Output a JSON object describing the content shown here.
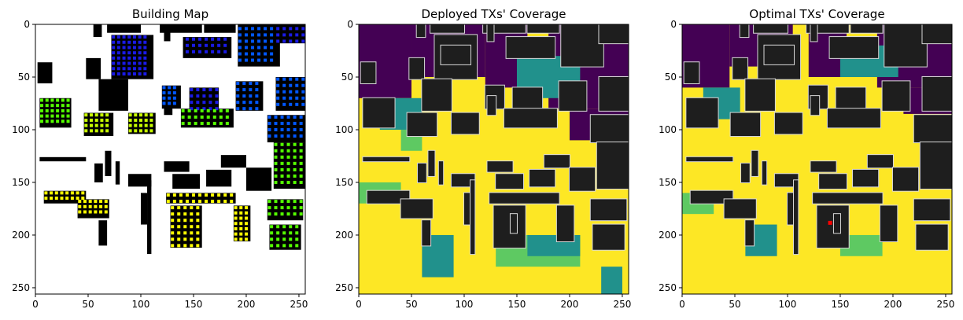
{
  "chart_data": [
    {
      "type": "heatmap",
      "title": "Building Map",
      "xlim": [
        0,
        256
      ],
      "ylim": [
        256,
        0
      ],
      "xticks": [
        0,
        50,
        100,
        150,
        200,
        250
      ],
      "yticks": [
        0,
        50,
        100,
        150,
        200,
        250
      ],
      "grid": false,
      "background": "#ffffff",
      "building_color": "#000000",
      "tx_colors": [
        "#1a1ae6",
        "#0057ff",
        "#00b0ff",
        "#55ff00",
        "#c8ff00",
        "#ffff00"
      ]
    },
    {
      "type": "heatmap",
      "title": "Deployed TXs' Coverage",
      "xlim": [
        0,
        256
      ],
      "ylim": [
        256,
        0
      ],
      "xticks": [
        0,
        50,
        100,
        150,
        200,
        250
      ],
      "yticks": [
        0,
        50,
        100,
        150,
        200,
        250
      ],
      "grid": false,
      "colormap": [
        "#440154",
        "#21918c",
        "#5ec962",
        "#fde725"
      ],
      "building_color": "#1e1e1e"
    },
    {
      "type": "heatmap",
      "title": "Optimal TXs' Coverage",
      "xlim": [
        0,
        256
      ],
      "ylim": [
        256,
        0
      ],
      "xticks": [
        0,
        50,
        100,
        150,
        200,
        250
      ],
      "yticks": [
        0,
        50,
        100,
        150,
        200,
        250
      ],
      "grid": false,
      "colormap": [
        "#440154",
        "#21918c",
        "#5ec962",
        "#fde725"
      ],
      "building_color": "#1e1e1e",
      "marker": {
        "x": 140,
        "y": 188,
        "color": "#ff0000"
      }
    }
  ]
}
